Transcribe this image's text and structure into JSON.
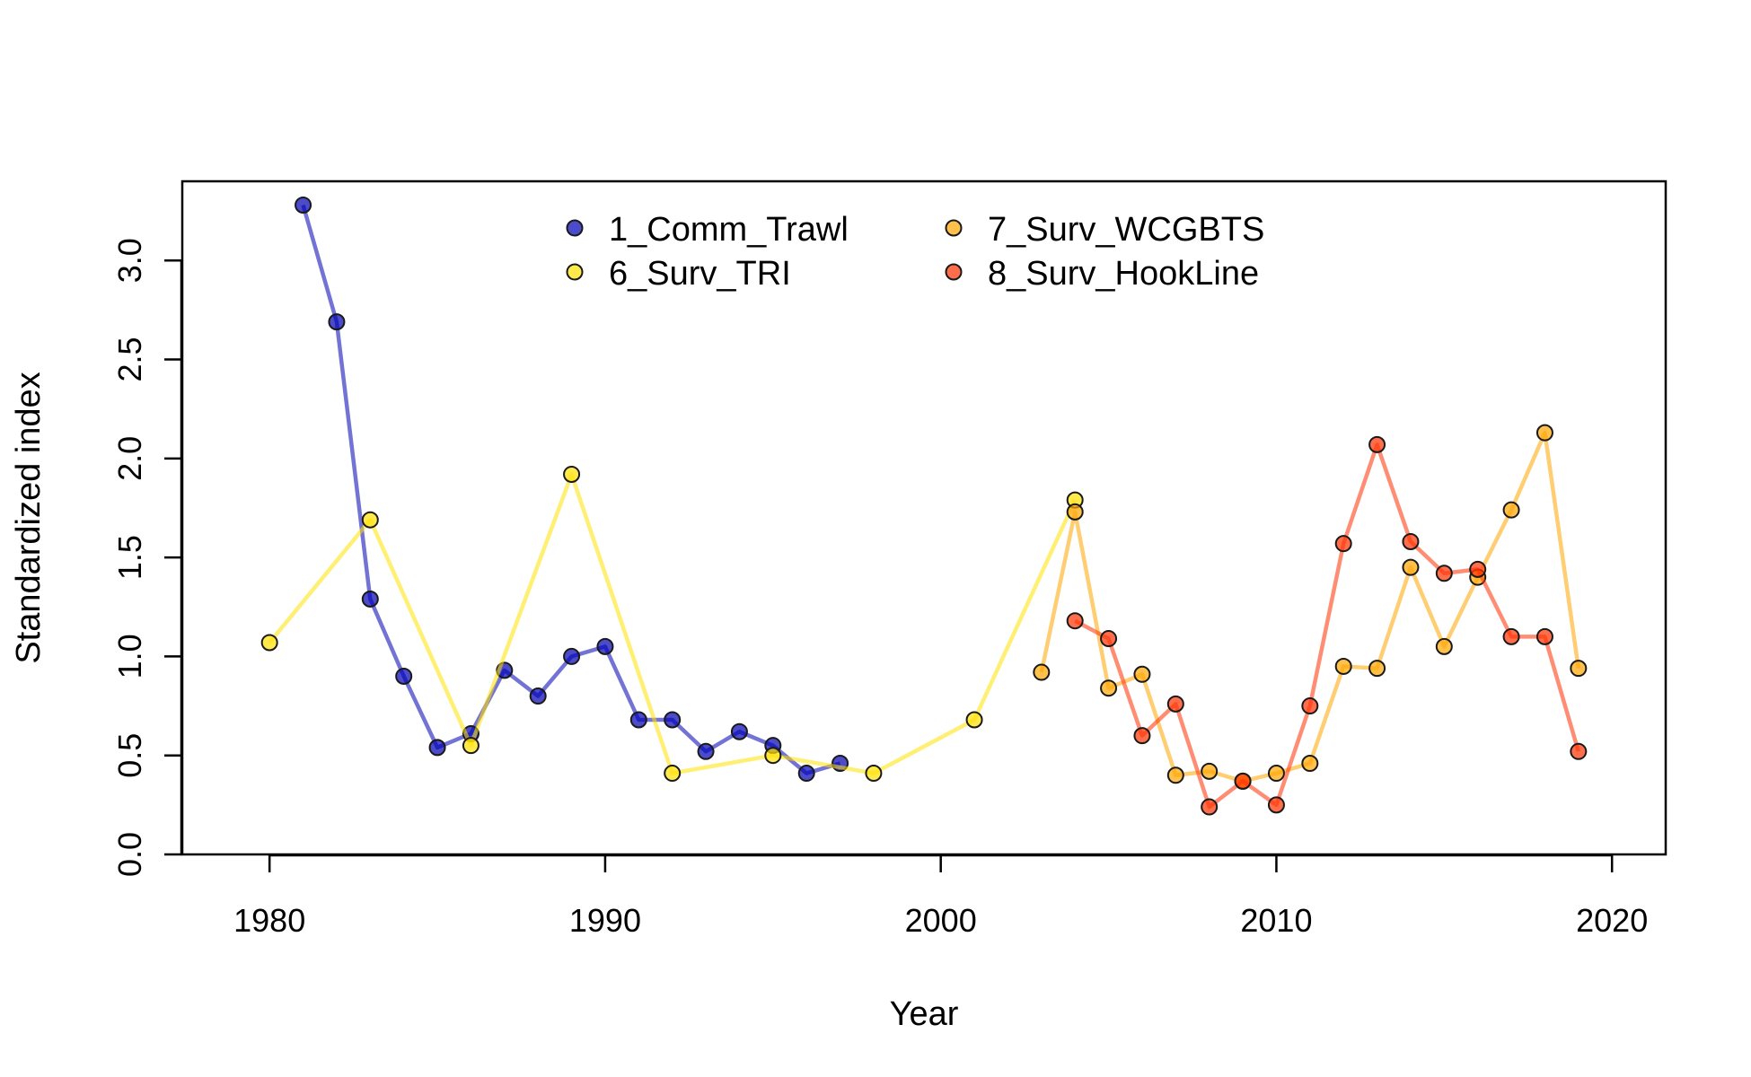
{
  "chart_data": {
    "type": "line",
    "title": "",
    "xlabel": "Year",
    "ylabel": "Standardized index",
    "xlim": [
      1977.4,
      2021.6
    ],
    "ylim": [
      0.0,
      3.4
    ],
    "xticks": [
      "1980",
      "1990",
      "2000",
      "2010",
      "2020"
    ],
    "yticks": [
      "0.0",
      "0.5",
      "1.0",
      "1.5",
      "2.0",
      "2.5",
      "3.0"
    ],
    "grid": false,
    "legend_position": "top-center",
    "series": [
      {
        "name": "1_Comm_Trawl",
        "color": "#0000b3",
        "points": [
          [
            1981,
            3.28
          ],
          [
            1982,
            2.69
          ],
          [
            1983,
            1.29
          ],
          [
            1984,
            0.9
          ],
          [
            1985,
            0.54
          ],
          [
            1986,
            0.61
          ],
          [
            1987,
            0.93
          ],
          [
            1988,
            0.8
          ],
          [
            1989,
            1.0
          ],
          [
            1990,
            1.05
          ],
          [
            1991,
            0.68
          ],
          [
            1992,
            0.68
          ],
          [
            1993,
            0.52
          ],
          [
            1994,
            0.62
          ],
          [
            1995,
            0.55
          ],
          [
            1996,
            0.41
          ],
          [
            1997,
            0.46
          ]
        ]
      },
      {
        "name": "6_Surv_TRI",
        "color": "#ffe100",
        "points": [
          [
            1980,
            1.07
          ],
          [
            1983,
            1.69
          ],
          [
            1986,
            0.55
          ],
          [
            1989,
            1.92
          ],
          [
            1992,
            0.41
          ],
          [
            1995,
            0.5
          ],
          [
            1998,
            0.41
          ],
          [
            2001,
            0.68
          ],
          [
            2004,
            1.79
          ]
        ]
      },
      {
        "name": "7_Surv_WCGBTS",
        "color": "#ffa500",
        "points": [
          [
            2003,
            0.92
          ],
          [
            2004,
            1.73
          ],
          [
            2005,
            0.84
          ],
          [
            2006,
            0.91
          ],
          [
            2007,
            0.4
          ],
          [
            2008,
            0.42
          ],
          [
            2009,
            0.37
          ],
          [
            2010,
            0.41
          ],
          [
            2011,
            0.46
          ],
          [
            2012,
            0.95
          ],
          [
            2013,
            0.94
          ],
          [
            2014,
            1.45
          ],
          [
            2015,
            1.05
          ],
          [
            2016,
            1.4
          ],
          [
            2017,
            1.74
          ],
          [
            2018,
            2.13
          ],
          [
            2019,
            0.94
          ]
        ]
      },
      {
        "name": "8_Surv_HookLine",
        "color": "#ff3000",
        "points": [
          [
            2004,
            1.18
          ],
          [
            2005,
            1.09
          ],
          [
            2006,
            0.6
          ],
          [
            2007,
            0.76
          ],
          [
            2008,
            0.24
          ],
          [
            2009,
            0.37
          ],
          [
            2010,
            0.25
          ],
          [
            2011,
            0.75
          ],
          [
            2012,
            1.57
          ],
          [
            2013,
            2.07
          ],
          [
            2014,
            1.58
          ],
          [
            2015,
            1.42
          ],
          [
            2016,
            1.44
          ],
          [
            2017,
            1.1
          ],
          [
            2018,
            1.1
          ],
          [
            2019,
            0.52
          ]
        ]
      }
    ]
  }
}
